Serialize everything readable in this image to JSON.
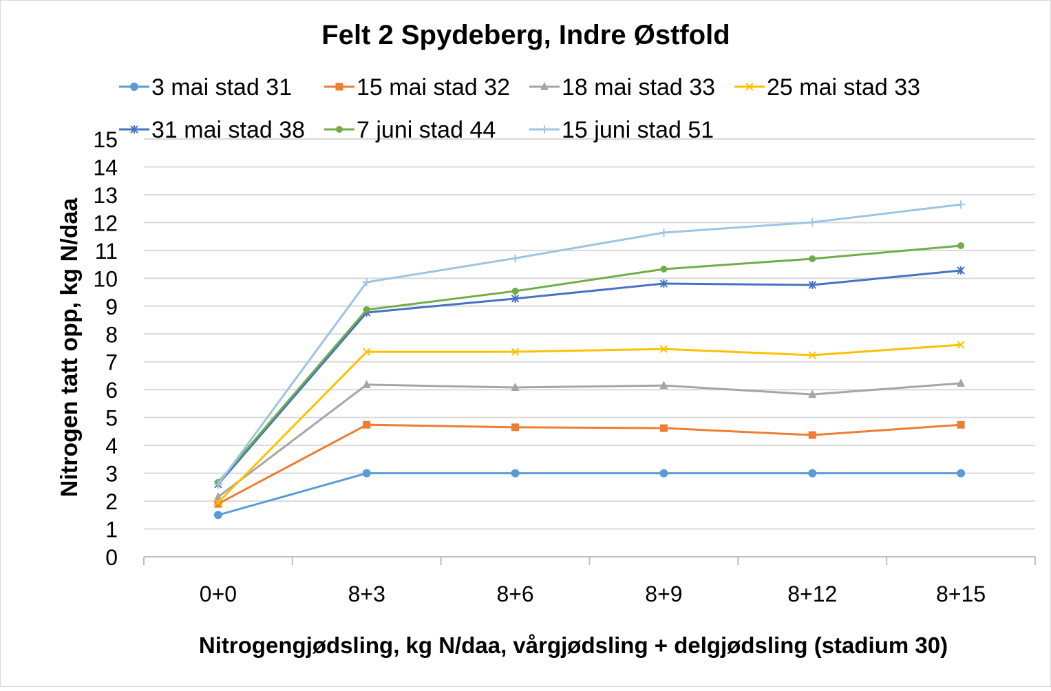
{
  "chart_data": {
    "type": "line",
    "title": "Felt 2 Spydeberg, Indre Østfold",
    "xlabel": "Nitrogengjødsling, kg N/daa, vårgjødsling + delgjødsling (stadium 30)",
    "ylabel": "Nitrogen tatt opp, kg N/daa",
    "categories": [
      "0+0",
      "8+3",
      "8+6",
      "8+9",
      "8+12",
      "8+15"
    ],
    "ylim": [
      0,
      15
    ],
    "yticks": [
      "0",
      "1",
      "2",
      "3",
      "4",
      "5",
      "6",
      "7",
      "8",
      "9",
      "10",
      "11",
      "12",
      "13",
      "14",
      "15"
    ],
    "grid": true,
    "legend_position": "top",
    "series": [
      {
        "name": "3 mai stad 31",
        "color": "#5b9bd5",
        "marker": "circle",
        "values": [
          1.5,
          3.0,
          3.0,
          3.0,
          3.0,
          3.0
        ]
      },
      {
        "name": "15 mai stad 32",
        "color": "#ed7d31",
        "marker": "square",
        "values": [
          1.9,
          4.74,
          4.65,
          4.62,
          4.37,
          4.74
        ]
      },
      {
        "name": "18 mai stad 33",
        "color": "#a5a5a5",
        "marker": "triangle",
        "values": [
          2.15,
          6.18,
          6.08,
          6.15,
          5.83,
          6.23
        ]
      },
      {
        "name": "25 mai stad 33",
        "color": "#ffc000",
        "marker": "x",
        "values": [
          1.95,
          7.36,
          7.36,
          7.46,
          7.24,
          7.61
        ]
      },
      {
        "name": "31 mai stad 38",
        "color": "#4472c4",
        "marker": "star",
        "values": [
          2.6,
          8.77,
          9.27,
          9.81,
          9.76,
          10.28
        ]
      },
      {
        "name": "7 juni stad 44",
        "color": "#70ad47",
        "marker": "circle-small",
        "values": [
          2.67,
          8.87,
          9.54,
          10.33,
          10.7,
          11.17
        ]
      },
      {
        "name": "15 juni stad 51",
        "color": "#9dc3e6",
        "marker": "plus",
        "values": [
          2.6,
          9.86,
          10.72,
          11.64,
          12.01,
          12.65
        ]
      }
    ]
  }
}
